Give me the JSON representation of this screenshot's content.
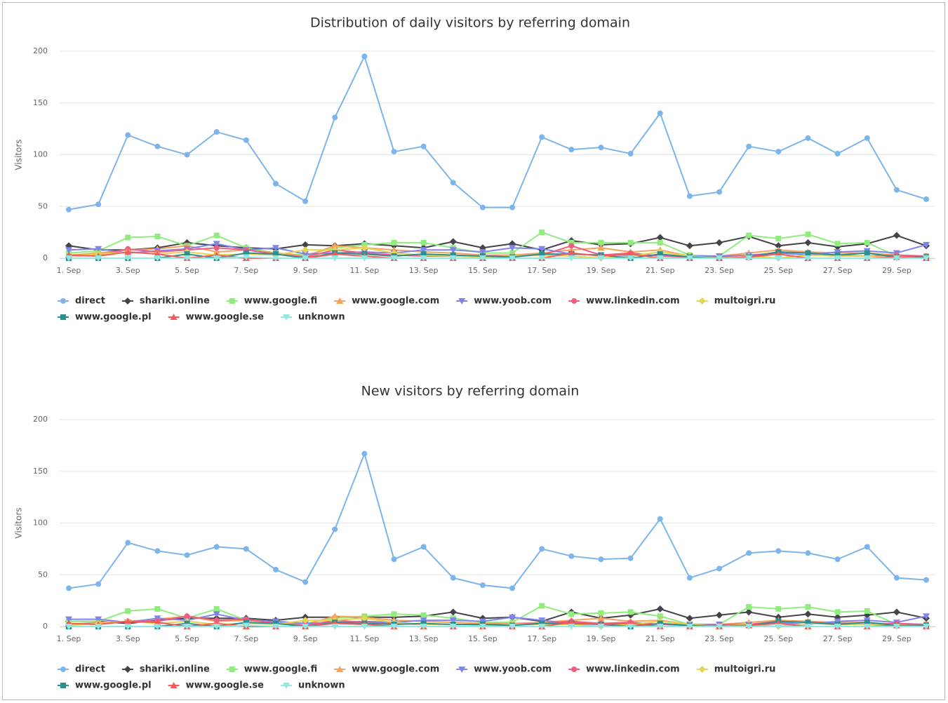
{
  "chart_data": [
    {
      "type": "line",
      "title": "Distribution of daily visitors by referring domain",
      "y_label": "Visitors",
      "categories": [
        "1. Sep",
        null,
        "3. Sep",
        null,
        "5. Sep",
        null,
        "7. Sep",
        null,
        "9. Sep",
        null,
        "11. Sep",
        null,
        "13. Sep",
        null,
        "15. Sep",
        null,
        "17. Sep",
        null,
        "19. Sep",
        null,
        "21. Sep",
        null,
        "23. Sep",
        null,
        "25. Sep",
        null,
        "27. Sep",
        null,
        "29. Sep",
        null
      ],
      "ylim": [
        0,
        200
      ],
      "yticks": [
        0,
        50,
        100,
        150,
        200
      ],
      "grid": true,
      "series": [
        {
          "name": "direct",
          "color": "#7cb5ec",
          "marker": "circle",
          "values": [
            47,
            52,
            119,
            108,
            100,
            122,
            114,
            72,
            55,
            136,
            195,
            103,
            108,
            73,
            49,
            49,
            117,
            105,
            107,
            101,
            140,
            60,
            64,
            108,
            103,
            116,
            101,
            116,
            66,
            57
          ]
        },
        {
          "name": "shariki.online",
          "color": "#434348",
          "marker": "diamond",
          "values": [
            12,
            8,
            8,
            10,
            15,
            12,
            10,
            9,
            13,
            12,
            14,
            12,
            10,
            16,
            10,
            14,
            8,
            17,
            13,
            14,
            20,
            12,
            15,
            21,
            12,
            15,
            11,
            14,
            22,
            12
          ]
        },
        {
          "name": "www.google.fi",
          "color": "#90ed7d",
          "marker": "square",
          "values": [
            5,
            7,
            20,
            21,
            12,
            22,
            10,
            5,
            3,
            10,
            13,
            15,
            15,
            10,
            5,
            5,
            25,
            15,
            15,
            15,
            15,
            3,
            2,
            22,
            19,
            23,
            14,
            15,
            2,
            2
          ]
        },
        {
          "name": "www.google.com",
          "color": "#f7a35c",
          "marker": "triangle",
          "values": [
            3,
            5,
            8,
            9,
            12,
            6,
            8,
            5,
            2,
            12,
            10,
            8,
            6,
            5,
            3,
            3,
            5,
            8,
            10,
            6,
            8,
            2,
            2,
            5,
            8,
            6,
            5,
            5,
            3,
            2
          ]
        },
        {
          "name": "www.yoob.com",
          "color": "#8085e9",
          "marker": "triangle-down",
          "values": [
            8,
            9,
            5,
            7,
            9,
            14,
            8,
            10,
            4,
            5,
            6,
            5,
            8,
            8,
            6,
            10,
            9,
            4,
            3,
            3,
            3,
            2,
            2,
            3,
            5,
            3,
            6,
            7,
            5,
            13
          ]
        },
        {
          "name": "www.linkedin.com",
          "color": "#f15c80",
          "marker": "circle",
          "values": [
            2,
            3,
            9,
            6,
            8,
            10,
            8,
            4,
            1,
            8,
            5,
            3,
            2,
            2,
            2,
            2,
            3,
            12,
            3,
            5,
            2,
            1,
            1,
            2,
            6,
            5,
            3,
            2,
            3,
            2
          ]
        },
        {
          "name": "multoigri.ru",
          "color": "#e4d354",
          "marker": "diamond",
          "values": [
            2,
            4,
            6,
            4,
            6,
            3,
            4,
            3,
            8,
            8,
            10,
            5,
            3,
            2,
            1,
            2,
            3,
            2,
            0,
            2,
            6,
            2,
            0,
            2,
            0,
            3,
            2,
            2,
            1,
            1
          ]
        },
        {
          "name": "www.google.pl",
          "color": "#2b908f",
          "marker": "square",
          "values": [
            0,
            0,
            0,
            0,
            4,
            0,
            5,
            4,
            0,
            5,
            4,
            2,
            4,
            3,
            2,
            1,
            4,
            4,
            3,
            0,
            4,
            1,
            0,
            1,
            6,
            5,
            3,
            5,
            1,
            1
          ]
        },
        {
          "name": "www.google.se",
          "color": "#f45b5b",
          "marker": "triangle",
          "values": [
            3,
            2,
            6,
            4,
            0,
            3,
            0,
            0,
            0,
            4,
            2,
            0,
            0,
            0,
            0,
            0,
            0,
            5,
            2,
            4,
            0,
            0,
            0,
            1,
            4,
            0,
            0,
            0,
            1,
            0
          ]
        },
        {
          "name": "unknown",
          "color": "#91e8e1",
          "marker": "triangle-down",
          "values": [
            0,
            0,
            0,
            0,
            0,
            0,
            1,
            0,
            0,
            0,
            0,
            0,
            0,
            0,
            0,
            0,
            0,
            0,
            0,
            0,
            0,
            0,
            0,
            0,
            0,
            0,
            0,
            0,
            0,
            0
          ]
        }
      ]
    },
    {
      "type": "line",
      "title": "New visitors by referring domain",
      "y_label": "Visitors",
      "categories": [
        "1. Sep",
        null,
        "3. Sep",
        null,
        "5. Sep",
        null,
        "7. Sep",
        null,
        "9. Sep",
        null,
        "11. Sep",
        null,
        "13. Sep",
        null,
        "15. Sep",
        null,
        "17. Sep",
        null,
        "19. Sep",
        null,
        "21. Sep",
        null,
        "23. Sep",
        null,
        "25. Sep",
        null,
        "27. Sep",
        null,
        "29. Sep",
        null
      ],
      "ylim": [
        0,
        200
      ],
      "yticks": [
        0,
        50,
        100,
        150,
        200
      ],
      "grid": true,
      "series": [
        {
          "name": "direct",
          "color": "#7cb5ec",
          "marker": "circle",
          "values": [
            37,
            41,
            81,
            73,
            69,
            77,
            75,
            55,
            43,
            94,
            167,
            65,
            77,
            47,
            40,
            37,
            75,
            68,
            65,
            66,
            104,
            47,
            56,
            71,
            73,
            71,
            65,
            77,
            47,
            45
          ]
        },
        {
          "name": "shariki.online",
          "color": "#434348",
          "marker": "diamond",
          "values": [
            5,
            5,
            3,
            6,
            8,
            8,
            8,
            6,
            9,
            9,
            9,
            9,
            10,
            14,
            8,
            9,
            5,
            14,
            8,
            11,
            17,
            8,
            11,
            14,
            9,
            12,
            9,
            11,
            14,
            8
          ]
        },
        {
          "name": "www.google.fi",
          "color": "#90ed7d",
          "marker": "square",
          "values": [
            5,
            5,
            15,
            17,
            8,
            17,
            6,
            4,
            3,
            8,
            10,
            12,
            11,
            8,
            4,
            4,
            20,
            12,
            13,
            14,
            10,
            2,
            2,
            19,
            17,
            19,
            14,
            15,
            2,
            2
          ]
        },
        {
          "name": "www.google.com",
          "color": "#f7a35c",
          "marker": "triangle",
          "values": [
            2,
            4,
            5,
            7,
            10,
            5,
            6,
            4,
            2,
            10,
            9,
            6,
            5,
            4,
            3,
            3,
            4,
            6,
            8,
            5,
            6,
            2,
            2,
            4,
            6,
            5,
            4,
            4,
            2,
            2
          ]
        },
        {
          "name": "www.yoob.com",
          "color": "#8085e9",
          "marker": "triangle-down",
          "values": [
            7,
            7,
            4,
            8,
            6,
            12,
            6,
            5,
            3,
            4,
            5,
            4,
            6,
            6,
            5,
            9,
            6,
            3,
            2,
            3,
            2,
            2,
            2,
            2,
            4,
            2,
            5,
            6,
            4,
            10
          ]
        },
        {
          "name": "www.linkedin.com",
          "color": "#f15c80",
          "marker": "circle",
          "values": [
            2,
            3,
            5,
            5,
            10,
            6,
            7,
            3,
            1,
            6,
            4,
            3,
            2,
            2,
            2,
            2,
            3,
            5,
            3,
            4,
            2,
            1,
            1,
            2,
            5,
            4,
            3,
            2,
            3,
            2
          ]
        },
        {
          "name": "multoigri.ru",
          "color": "#e4d354",
          "marker": "diamond",
          "values": [
            1,
            3,
            5,
            3,
            5,
            2,
            3,
            2,
            6,
            6,
            8,
            4,
            2,
            2,
            1,
            2,
            2,
            2,
            0,
            2,
            5,
            2,
            0,
            2,
            0,
            3,
            2,
            2,
            1,
            1
          ]
        },
        {
          "name": "www.google.pl",
          "color": "#2b908f",
          "marker": "square",
          "values": [
            0,
            0,
            0,
            0,
            3,
            0,
            4,
            3,
            0,
            4,
            3,
            2,
            3,
            2,
            2,
            1,
            3,
            3,
            2,
            0,
            3,
            1,
            0,
            1,
            5,
            4,
            2,
            4,
            1,
            1
          ]
        },
        {
          "name": "www.google.se",
          "color": "#f45b5b",
          "marker": "triangle",
          "values": [
            3,
            2,
            5,
            4,
            0,
            3,
            0,
            0,
            0,
            3,
            2,
            0,
            0,
            0,
            0,
            0,
            0,
            4,
            2,
            3,
            0,
            0,
            0,
            1,
            3,
            0,
            0,
            0,
            1,
            0
          ]
        },
        {
          "name": "unknown",
          "color": "#91e8e1",
          "marker": "triangle-down",
          "values": [
            0,
            0,
            0,
            0,
            0,
            0,
            1,
            0,
            0,
            0,
            0,
            0,
            0,
            0,
            0,
            0,
            0,
            0,
            0,
            0,
            0,
            0,
            0,
            0,
            0,
            0,
            0,
            0,
            0,
            0
          ]
        }
      ]
    }
  ]
}
